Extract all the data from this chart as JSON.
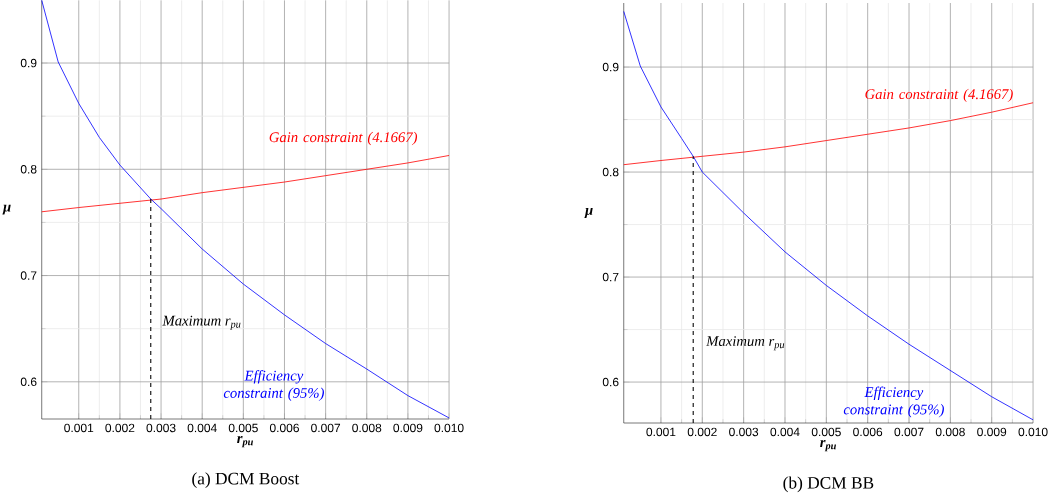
{
  "chart_data": [
    {
      "type": "line",
      "title": "(a) DCM Boost",
      "xlabel": "r$_{pu}$",
      "ylabel": "μ",
      "grid": true,
      "line_style": "solid",
      "marker": "none",
      "xlim": [
        0.0001,
        0.01
      ],
      "ylim": [
        0.565,
        0.959
      ],
      "xticks": [
        0.001,
        0.002,
        0.003,
        0.004,
        0.005,
        0.006,
        0.007,
        0.008,
        0.009,
        {
          "value": 0.01,
          "label": "0.010"
        }
      ],
      "yticks": [
        0.6,
        0.7,
        0.8,
        0.9
      ],
      "annotations": [
        "Maximum r$_{pu}$"
      ],
      "series": [
        {
          "name": "Gain constraint (4.1667)",
          "color": "#ff0000",
          "x": [
            0.0001,
            0.001,
            0.002,
            0.003,
            0.004,
            0.005,
            0.006,
            0.007,
            0.008,
            0.009,
            0.01
          ],
          "values": [
            0.76,
            0.764,
            0.768,
            0.772,
            0.778,
            0.783,
            0.788,
            0.794,
            0.8,
            0.806,
            0.813
          ]
        },
        {
          "name": "Efficiency constraint (95%)",
          "color": "#0000ff",
          "x": [
            0.0001,
            0.0005,
            0.001,
            0.0015,
            0.002,
            0.00275,
            0.003,
            0.004,
            0.005,
            0.006,
            0.007,
            0.008,
            0.009,
            0.01
          ],
          "values": [
            0.959,
            0.901,
            0.862,
            0.83,
            0.804,
            0.772,
            0.763,
            0.725,
            0.692,
            0.663,
            0.636,
            0.612,
            0.587,
            0.566
          ]
        },
        {
          "color": "#000000",
          "line_style": "dashed",
          "x": [
            0.00275,
            0.00275
          ],
          "values": [
            0.565,
            0.772
          ]
        }
      ]
    },
    {
      "type": "line",
      "title": "(b) DCM BB",
      "xlabel": "r$_{pu}$",
      "ylabel": "μ",
      "grid": true,
      "line_style": "solid",
      "marker": "none",
      "xlim": [
        0.0001,
        0.01
      ],
      "ylim": [
        0.561,
        0.961
      ],
      "xticks": [
        0.001,
        0.002,
        0.003,
        0.004,
        0.005,
        0.006,
        0.007,
        0.008,
        0.009,
        {
          "value": 0.01,
          "label": "0.010"
        }
      ],
      "yticks": [
        0.6,
        0.7,
        0.8,
        0.9
      ],
      "annotations": [
        "Maximum r$_{pu}$"
      ],
      "series": [
        {
          "name": "Gain constraint (4.1667)",
          "color": "#ff0000",
          "x": [
            0.0001,
            0.001,
            0.002,
            0.003,
            0.004,
            0.005,
            0.006,
            0.007,
            0.008,
            0.009,
            0.01
          ],
          "values": [
            0.807,
            0.811,
            0.815,
            0.819,
            0.824,
            0.83,
            0.836,
            0.842,
            0.849,
            0.857,
            0.866
          ]
        },
        {
          "name": "Efficiency constraint (95%)",
          "color": "#0000ff",
          "x": [
            0.0001,
            0.0005,
            0.001,
            0.0015,
            0.00178,
            0.002,
            0.003,
            0.004,
            0.005,
            0.006,
            0.007,
            0.008,
            0.009,
            0.01
          ],
          "values": [
            0.953,
            0.901,
            0.862,
            0.832,
            0.815,
            0.8,
            0.761,
            0.724,
            0.692,
            0.663,
            0.636,
            0.611,
            0.586,
            0.564
          ]
        },
        {
          "color": "#000000",
          "line_style": "dashed",
          "x": [
            0.00178,
            0.00178
          ],
          "values": [
            0.561,
            0.815
          ]
        }
      ]
    }
  ]
}
